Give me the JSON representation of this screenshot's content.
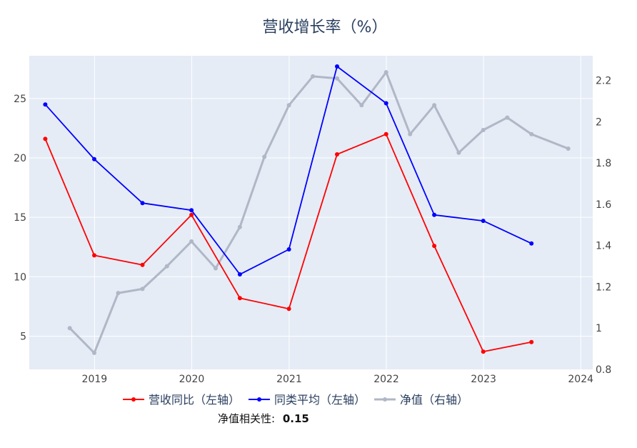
{
  "chart_data": {
    "type": "line",
    "title": "营收增长率（%）",
    "x_range": [
      "2018-05-01",
      "2024-02-15"
    ],
    "x_ticks": [
      "2019",
      "2020",
      "2021",
      "2022",
      "2023",
      "2024"
    ],
    "y_left": {
      "range": [
        2.2,
        28.6
      ],
      "ticks": [
        5,
        10,
        15,
        20,
        25
      ]
    },
    "y_right": {
      "range": [
        0.8,
        2.32
      ],
      "ticks": [
        0.8,
        1,
        1.2,
        1.4,
        1.6,
        1.8,
        2,
        2.2
      ]
    },
    "grid": true,
    "legend_position": "bottom",
    "series": [
      {
        "name": "营收同比（左轴）",
        "axis": "left",
        "color": "#ff0000",
        "x": [
          "2018-06-30",
          "2018-12-31",
          "2019-06-30",
          "2019-12-31",
          "2020-06-30",
          "2020-12-31",
          "2021-06-30",
          "2021-12-31",
          "2022-06-30",
          "2022-12-31",
          "2023-06-30"
        ],
        "y": [
          21.6,
          11.8,
          11.0,
          15.2,
          8.2,
          7.3,
          20.3,
          22.0,
          12.6,
          3.7,
          4.5
        ]
      },
      {
        "name": "同类平均（左轴）",
        "axis": "left",
        "color": "#0000ff",
        "x": [
          "2018-06-30",
          "2018-12-31",
          "2019-06-30",
          "2019-12-31",
          "2020-06-30",
          "2020-12-31",
          "2021-06-30",
          "2021-12-31",
          "2022-06-30",
          "2022-12-31",
          "2023-06-30"
        ],
        "y": [
          24.5,
          19.9,
          16.2,
          15.6,
          10.2,
          12.3,
          27.7,
          24.6,
          15.2,
          14.7,
          12.8
        ]
      },
      {
        "name": "净值（右轴）",
        "axis": "right",
        "color": "#b0b7c6",
        "x": [
          "2018-09-30",
          "2018-12-31",
          "2019-03-31",
          "2019-06-30",
          "2019-09-30",
          "2019-12-31",
          "2020-03-31",
          "2020-06-30",
          "2020-09-30",
          "2020-12-31",
          "2021-03-31",
          "2021-06-30",
          "2021-09-30",
          "2021-12-31",
          "2022-03-31",
          "2022-06-30",
          "2022-09-30",
          "2022-12-31",
          "2023-03-31",
          "2023-06-30",
          "2023-11-15"
        ],
        "y": [
          1.0,
          0.88,
          1.17,
          1.19,
          1.3,
          1.42,
          1.29,
          1.49,
          1.83,
          2.08,
          2.22,
          2.21,
          2.08,
          2.24,
          1.94,
          2.08,
          1.85,
          1.96,
          2.02,
          1.94,
          1.87
        ]
      }
    ],
    "annotation": {
      "label": "净值相关性:",
      "value": "0.15"
    }
  }
}
